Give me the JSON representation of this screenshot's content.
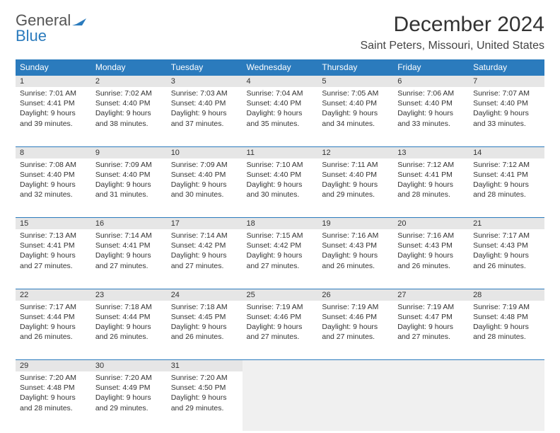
{
  "logo": {
    "word1": "General",
    "word2": "Blue"
  },
  "title": "December 2024",
  "location": "Saint Peters, Missouri, United States",
  "colors": {
    "header_bg": "#2b7bbd",
    "header_fg": "#ffffff",
    "daynum_bg": "#e6e6e6",
    "border": "#2b7bbd",
    "text": "#333333",
    "logo_gray": "#555555"
  },
  "typography": {
    "title_fontsize": 30,
    "location_fontsize": 16,
    "header_fontsize": 12,
    "cell_fontsize": 10.5
  },
  "weekdays": [
    "Sunday",
    "Monday",
    "Tuesday",
    "Wednesday",
    "Thursday",
    "Friday",
    "Saturday"
  ],
  "weeks": [
    [
      {
        "num": "1",
        "sunrise": "Sunrise: 7:01 AM",
        "sunset": "Sunset: 4:41 PM",
        "day1": "Daylight: 9 hours",
        "day2": "and 39 minutes."
      },
      {
        "num": "2",
        "sunrise": "Sunrise: 7:02 AM",
        "sunset": "Sunset: 4:40 PM",
        "day1": "Daylight: 9 hours",
        "day2": "and 38 minutes."
      },
      {
        "num": "3",
        "sunrise": "Sunrise: 7:03 AM",
        "sunset": "Sunset: 4:40 PM",
        "day1": "Daylight: 9 hours",
        "day2": "and 37 minutes."
      },
      {
        "num": "4",
        "sunrise": "Sunrise: 7:04 AM",
        "sunset": "Sunset: 4:40 PM",
        "day1": "Daylight: 9 hours",
        "day2": "and 35 minutes."
      },
      {
        "num": "5",
        "sunrise": "Sunrise: 7:05 AM",
        "sunset": "Sunset: 4:40 PM",
        "day1": "Daylight: 9 hours",
        "day2": "and 34 minutes."
      },
      {
        "num": "6",
        "sunrise": "Sunrise: 7:06 AM",
        "sunset": "Sunset: 4:40 PM",
        "day1": "Daylight: 9 hours",
        "day2": "and 33 minutes."
      },
      {
        "num": "7",
        "sunrise": "Sunrise: 7:07 AM",
        "sunset": "Sunset: 4:40 PM",
        "day1": "Daylight: 9 hours",
        "day2": "and 33 minutes."
      }
    ],
    [
      {
        "num": "8",
        "sunrise": "Sunrise: 7:08 AM",
        "sunset": "Sunset: 4:40 PM",
        "day1": "Daylight: 9 hours",
        "day2": "and 32 minutes."
      },
      {
        "num": "9",
        "sunrise": "Sunrise: 7:09 AM",
        "sunset": "Sunset: 4:40 PM",
        "day1": "Daylight: 9 hours",
        "day2": "and 31 minutes."
      },
      {
        "num": "10",
        "sunrise": "Sunrise: 7:09 AM",
        "sunset": "Sunset: 4:40 PM",
        "day1": "Daylight: 9 hours",
        "day2": "and 30 minutes."
      },
      {
        "num": "11",
        "sunrise": "Sunrise: 7:10 AM",
        "sunset": "Sunset: 4:40 PM",
        "day1": "Daylight: 9 hours",
        "day2": "and 30 minutes."
      },
      {
        "num": "12",
        "sunrise": "Sunrise: 7:11 AM",
        "sunset": "Sunset: 4:40 PM",
        "day1": "Daylight: 9 hours",
        "day2": "and 29 minutes."
      },
      {
        "num": "13",
        "sunrise": "Sunrise: 7:12 AM",
        "sunset": "Sunset: 4:41 PM",
        "day1": "Daylight: 9 hours",
        "day2": "and 28 minutes."
      },
      {
        "num": "14",
        "sunrise": "Sunrise: 7:12 AM",
        "sunset": "Sunset: 4:41 PM",
        "day1": "Daylight: 9 hours",
        "day2": "and 28 minutes."
      }
    ],
    [
      {
        "num": "15",
        "sunrise": "Sunrise: 7:13 AM",
        "sunset": "Sunset: 4:41 PM",
        "day1": "Daylight: 9 hours",
        "day2": "and 27 minutes."
      },
      {
        "num": "16",
        "sunrise": "Sunrise: 7:14 AM",
        "sunset": "Sunset: 4:41 PM",
        "day1": "Daylight: 9 hours",
        "day2": "and 27 minutes."
      },
      {
        "num": "17",
        "sunrise": "Sunrise: 7:14 AM",
        "sunset": "Sunset: 4:42 PM",
        "day1": "Daylight: 9 hours",
        "day2": "and 27 minutes."
      },
      {
        "num": "18",
        "sunrise": "Sunrise: 7:15 AM",
        "sunset": "Sunset: 4:42 PM",
        "day1": "Daylight: 9 hours",
        "day2": "and 27 minutes."
      },
      {
        "num": "19",
        "sunrise": "Sunrise: 7:16 AM",
        "sunset": "Sunset: 4:43 PM",
        "day1": "Daylight: 9 hours",
        "day2": "and 26 minutes."
      },
      {
        "num": "20",
        "sunrise": "Sunrise: 7:16 AM",
        "sunset": "Sunset: 4:43 PM",
        "day1": "Daylight: 9 hours",
        "day2": "and 26 minutes."
      },
      {
        "num": "21",
        "sunrise": "Sunrise: 7:17 AM",
        "sunset": "Sunset: 4:43 PM",
        "day1": "Daylight: 9 hours",
        "day2": "and 26 minutes."
      }
    ],
    [
      {
        "num": "22",
        "sunrise": "Sunrise: 7:17 AM",
        "sunset": "Sunset: 4:44 PM",
        "day1": "Daylight: 9 hours",
        "day2": "and 26 minutes."
      },
      {
        "num": "23",
        "sunrise": "Sunrise: 7:18 AM",
        "sunset": "Sunset: 4:44 PM",
        "day1": "Daylight: 9 hours",
        "day2": "and 26 minutes."
      },
      {
        "num": "24",
        "sunrise": "Sunrise: 7:18 AM",
        "sunset": "Sunset: 4:45 PM",
        "day1": "Daylight: 9 hours",
        "day2": "and 26 minutes."
      },
      {
        "num": "25",
        "sunrise": "Sunrise: 7:19 AM",
        "sunset": "Sunset: 4:46 PM",
        "day1": "Daylight: 9 hours",
        "day2": "and 27 minutes."
      },
      {
        "num": "26",
        "sunrise": "Sunrise: 7:19 AM",
        "sunset": "Sunset: 4:46 PM",
        "day1": "Daylight: 9 hours",
        "day2": "and 27 minutes."
      },
      {
        "num": "27",
        "sunrise": "Sunrise: 7:19 AM",
        "sunset": "Sunset: 4:47 PM",
        "day1": "Daylight: 9 hours",
        "day2": "and 27 minutes."
      },
      {
        "num": "28",
        "sunrise": "Sunrise: 7:19 AM",
        "sunset": "Sunset: 4:48 PM",
        "day1": "Daylight: 9 hours",
        "day2": "and 28 minutes."
      }
    ],
    [
      {
        "num": "29",
        "sunrise": "Sunrise: 7:20 AM",
        "sunset": "Sunset: 4:48 PM",
        "day1": "Daylight: 9 hours",
        "day2": "and 28 minutes."
      },
      {
        "num": "30",
        "sunrise": "Sunrise: 7:20 AM",
        "sunset": "Sunset: 4:49 PM",
        "day1": "Daylight: 9 hours",
        "day2": "and 29 minutes."
      },
      {
        "num": "31",
        "sunrise": "Sunrise: 7:20 AM",
        "sunset": "Sunset: 4:50 PM",
        "day1": "Daylight: 9 hours",
        "day2": "and 29 minutes."
      },
      null,
      null,
      null,
      null
    ]
  ]
}
